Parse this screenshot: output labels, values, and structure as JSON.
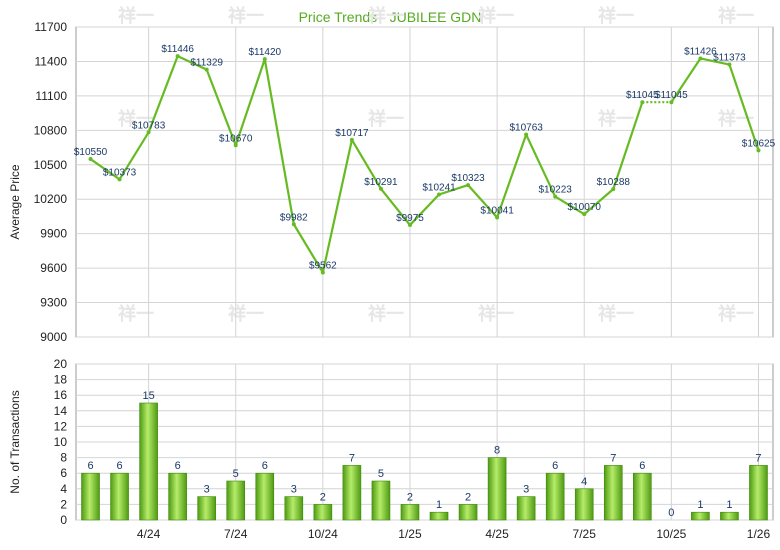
{
  "chart_data": [
    {
      "type": "line",
      "title": "Price Trends - JUBILEE GDN",
      "ylabel": "Average Price",
      "ylim": [
        9000,
        11700
      ],
      "yticks": [
        9000,
        9300,
        9600,
        9900,
        10200,
        10500,
        10800,
        11100,
        11400,
        11700
      ],
      "values": [
        10550,
        10373,
        10783,
        11446,
        11329,
        10670,
        11420,
        9982,
        9562,
        10717,
        10291,
        9975,
        10241,
        10323,
        10041,
        10763,
        10223,
        10070,
        10288,
        11045,
        11045,
        11426,
        11373,
        10625
      ],
      "labels": [
        "$10550",
        "$10373",
        "$10783",
        "$11446",
        "$11329",
        "$10670",
        "$11420",
        "$9982",
        "$9562",
        "$10717",
        "$10291",
        "$9975",
        "$10241",
        "$10323",
        "$10041",
        "$10763",
        "$10223",
        "$10070",
        "$10288",
        "$11045",
        "$11045",
        "$11426",
        "$11373",
        "$10625"
      ],
      "series_color": "#66bb22",
      "grid": true
    },
    {
      "type": "bar",
      "ylabel": "No. of Transactions",
      "ylim": [
        0,
        20
      ],
      "yticks": [
        0,
        2,
        4,
        6,
        8,
        10,
        12,
        14,
        16,
        18,
        20
      ],
      "values": [
        6,
        6,
        15,
        6,
        3,
        5,
        6,
        3,
        2,
        7,
        5,
        2,
        1,
        2,
        8,
        3,
        6,
        4,
        7,
        6,
        0,
        1,
        1,
        7
      ],
      "xticks": [
        {
          "index": 2,
          "label": "4/24"
        },
        {
          "index": 5,
          "label": "7/24"
        },
        {
          "index": 8,
          "label": "10/24"
        },
        {
          "index": 11,
          "label": "1/25"
        },
        {
          "index": 14,
          "label": "4/25"
        },
        {
          "index": 17,
          "label": "7/25"
        },
        {
          "index": 20,
          "label": "10/25"
        },
        {
          "index": 23,
          "label": "1/26"
        }
      ],
      "bar_color": "#7cc832",
      "grid": true
    }
  ],
  "colors": {
    "title": "#55aa22",
    "grid": "#d4d4d4",
    "frame": "#999999"
  },
  "watermark": "祥一"
}
